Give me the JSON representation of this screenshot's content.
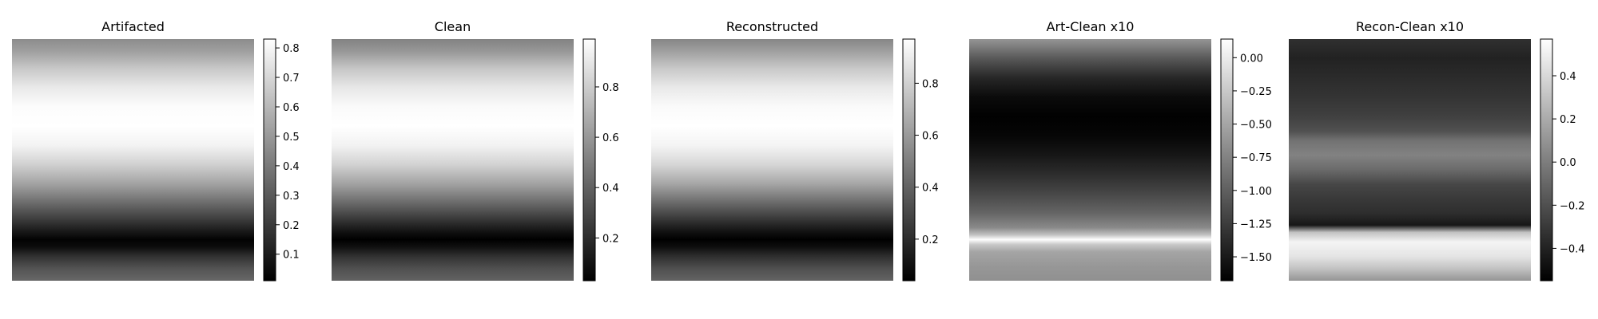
{
  "chart_data": [
    {
      "type": "heatmap",
      "title": "Artifacted",
      "colormap": "gray",
      "axes_visible": false,
      "colorbar": {
        "range": [
          0.01,
          0.83
        ],
        "ticks": [
          0.1,
          0.2,
          0.3,
          0.4,
          0.5,
          0.6,
          0.7,
          0.8
        ],
        "tick_labels": [
          "0.1",
          "0.2",
          "0.3",
          "0.4",
          "0.5",
          "0.6",
          "0.7",
          "0.8"
        ]
      },
      "row_profile": [
        {
          "row": 0.0,
          "value": 0.46
        },
        {
          "row": 0.05,
          "value": 0.52
        },
        {
          "row": 0.12,
          "value": 0.65
        },
        {
          "row": 0.2,
          "value": 0.76
        },
        {
          "row": 0.28,
          "value": 0.82
        },
        {
          "row": 0.36,
          "value": 0.83
        },
        {
          "row": 0.44,
          "value": 0.79
        },
        {
          "row": 0.52,
          "value": 0.68
        },
        {
          "row": 0.6,
          "value": 0.53
        },
        {
          "row": 0.68,
          "value": 0.35
        },
        {
          "row": 0.76,
          "value": 0.17
        },
        {
          "row": 0.8,
          "value": 0.08
        },
        {
          "row": 0.83,
          "value": 0.02
        },
        {
          "row": 0.86,
          "value": 0.05
        },
        {
          "row": 0.9,
          "value": 0.17
        },
        {
          "row": 0.95,
          "value": 0.28
        },
        {
          "row": 1.0,
          "value": 0.34
        }
      ]
    },
    {
      "type": "heatmap",
      "title": "Clean",
      "colormap": "gray",
      "axes_visible": false,
      "colorbar": {
        "range": [
          0.03,
          0.99
        ],
        "ticks": [
          0.2,
          0.4,
          0.6,
          0.8
        ],
        "tick_labels": [
          "0.2",
          "0.4",
          "0.6",
          "0.8"
        ]
      },
      "row_profile": [
        {
          "row": 0.0,
          "value": 0.52
        },
        {
          "row": 0.05,
          "value": 0.6
        },
        {
          "row": 0.12,
          "value": 0.77
        },
        {
          "row": 0.2,
          "value": 0.9
        },
        {
          "row": 0.28,
          "value": 0.97
        },
        {
          "row": 0.36,
          "value": 0.99
        },
        {
          "row": 0.44,
          "value": 0.94
        },
        {
          "row": 0.52,
          "value": 0.82
        },
        {
          "row": 0.6,
          "value": 0.64
        },
        {
          "row": 0.68,
          "value": 0.42
        },
        {
          "row": 0.76,
          "value": 0.2
        },
        {
          "row": 0.8,
          "value": 0.09
        },
        {
          "row": 0.83,
          "value": 0.03
        },
        {
          "row": 0.86,
          "value": 0.09
        },
        {
          "row": 0.9,
          "value": 0.22
        },
        {
          "row": 0.95,
          "value": 0.33
        },
        {
          "row": 1.0,
          "value": 0.4
        }
      ]
    },
    {
      "type": "heatmap",
      "title": "Reconstructed",
      "colormap": "gray",
      "axes_visible": false,
      "colorbar": {
        "range": [
          0.04,
          0.97
        ],
        "ticks": [
          0.2,
          0.4,
          0.6,
          0.8
        ],
        "tick_labels": [
          "0.2",
          "0.4",
          "0.6",
          "0.8"
        ]
      },
      "row_profile": [
        {
          "row": 0.0,
          "value": 0.53
        },
        {
          "row": 0.05,
          "value": 0.62
        },
        {
          "row": 0.12,
          "value": 0.77
        },
        {
          "row": 0.2,
          "value": 0.89
        },
        {
          "row": 0.28,
          "value": 0.95
        },
        {
          "row": 0.36,
          "value": 0.97
        },
        {
          "row": 0.44,
          "value": 0.93
        },
        {
          "row": 0.52,
          "value": 0.82
        },
        {
          "row": 0.6,
          "value": 0.64
        },
        {
          "row": 0.68,
          "value": 0.42
        },
        {
          "row": 0.76,
          "value": 0.2
        },
        {
          "row": 0.8,
          "value": 0.1
        },
        {
          "row": 0.83,
          "value": 0.04
        },
        {
          "row": 0.86,
          "value": 0.09
        },
        {
          "row": 0.9,
          "value": 0.21
        },
        {
          "row": 0.95,
          "value": 0.33
        },
        {
          "row": 1.0,
          "value": 0.4
        }
      ]
    },
    {
      "type": "heatmap",
      "title": "Art-Clean x10",
      "colormap": "gray",
      "axes_visible": false,
      "colorbar": {
        "range": [
          -1.68,
          0.14
        ],
        "ticks": [
          0.0,
          -0.25,
          -0.5,
          -0.75,
          -1.0,
          -1.25,
          -1.5
        ],
        "tick_labels": [
          "0.00",
          "−0.25",
          "−0.50",
          "−0.75",
          "−1.00",
          "−1.25",
          "−1.50"
        ]
      },
      "row_profile": [
        {
          "row": 0.0,
          "value": -0.62
        },
        {
          "row": 0.08,
          "value": -1.05
        },
        {
          "row": 0.16,
          "value": -1.4
        },
        {
          "row": 0.24,
          "value": -1.6
        },
        {
          "row": 0.32,
          "value": -1.67
        },
        {
          "row": 0.4,
          "value": -1.64
        },
        {
          "row": 0.48,
          "value": -1.52
        },
        {
          "row": 0.56,
          "value": -1.36
        },
        {
          "row": 0.64,
          "value": -1.17
        },
        {
          "row": 0.72,
          "value": -0.96
        },
        {
          "row": 0.78,
          "value": -0.7
        },
        {
          "row": 0.81,
          "value": -0.3
        },
        {
          "row": 0.83,
          "value": 0.13
        },
        {
          "row": 0.85,
          "value": -0.25
        },
        {
          "row": 0.88,
          "value": -0.5
        },
        {
          "row": 0.94,
          "value": -0.6
        },
        {
          "row": 1.0,
          "value": -0.65
        }
      ]
    },
    {
      "type": "heatmap",
      "title": "Recon-Clean x10",
      "colormap": "gray",
      "axes_visible": false,
      "colorbar": {
        "range": [
          -0.55,
          0.57
        ],
        "ticks": [
          0.4,
          0.2,
          0.0,
          -0.2,
          -0.4
        ],
        "tick_labels": [
          "0.4",
          "0.2",
          "0.0",
          "−0.2",
          "−0.4"
        ]
      },
      "row_profile": [
        {
          "row": 0.0,
          "value": -0.34
        },
        {
          "row": 0.08,
          "value": -0.4
        },
        {
          "row": 0.16,
          "value": -0.36
        },
        {
          "row": 0.24,
          "value": -0.32
        },
        {
          "row": 0.32,
          "value": -0.27
        },
        {
          "row": 0.38,
          "value": -0.2
        },
        {
          "row": 0.42,
          "value": -0.05
        },
        {
          "row": 0.48,
          "value": 0.02
        },
        {
          "row": 0.54,
          "value": -0.08
        },
        {
          "row": 0.6,
          "value": -0.24
        },
        {
          "row": 0.66,
          "value": -0.3
        },
        {
          "row": 0.72,
          "value": -0.35
        },
        {
          "row": 0.77,
          "value": -0.45
        },
        {
          "row": 0.8,
          "value": 0.3
        },
        {
          "row": 0.84,
          "value": 0.52
        },
        {
          "row": 0.9,
          "value": 0.45
        },
        {
          "row": 0.95,
          "value": 0.3
        },
        {
          "row": 1.0,
          "value": 0.1
        }
      ]
    }
  ]
}
